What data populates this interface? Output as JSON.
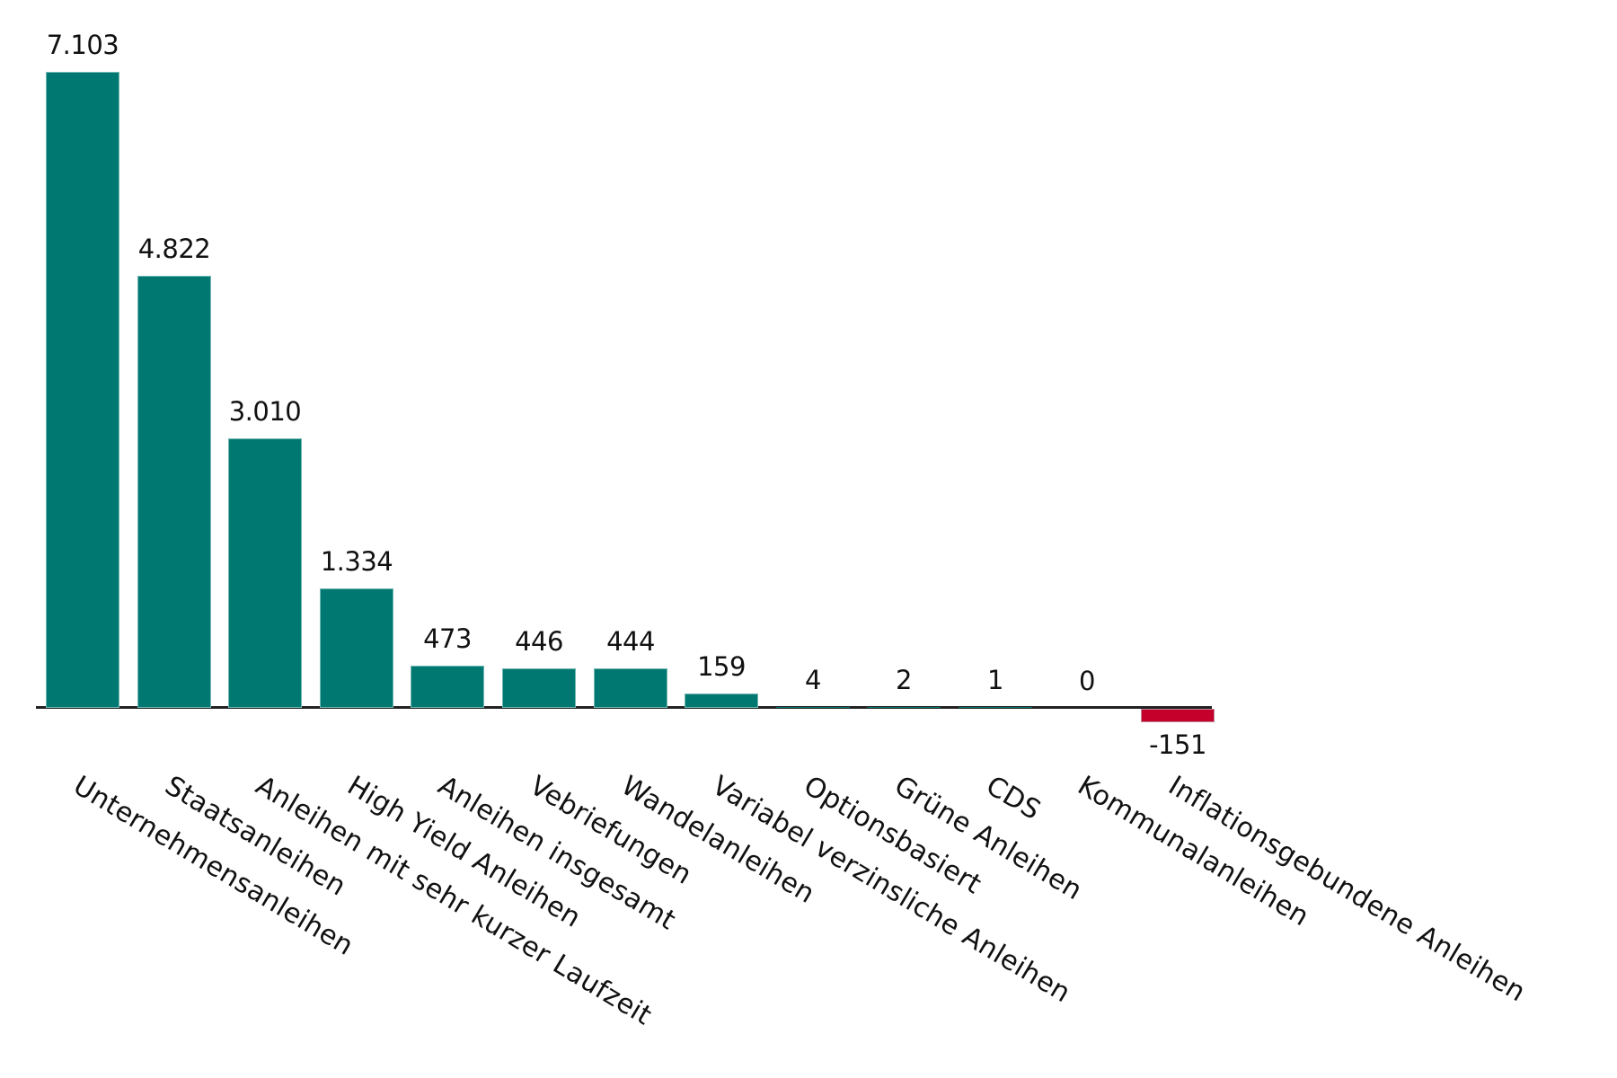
{
  "chart_data": {
    "type": "bar",
    "title": "",
    "xlabel": "",
    "ylabel": "",
    "categories": [
      "Unternehmensanleihen",
      "Staatsanleihen",
      "Anleihen mit sehr kurzer Laufzeit",
      "High Yield Anleihen",
      "Anleihen insgesamt",
      "Vebriefungen",
      "Wandelanleihen",
      "Variabel verzinsliche Anleihen",
      "Optionsbasiert",
      "Grüne Anleihen",
      "CDS",
      "Kommunalanleihen",
      "Inflationsgebundene Anleihen"
    ],
    "values": [
      7103,
      4822,
      3010,
      1334,
      473,
      446,
      444,
      159,
      4,
      2,
      1,
      0,
      -151
    ],
    "value_labels": [
      "7.103",
      "4.822",
      "3.010",
      "1.334",
      "473",
      "446",
      "444",
      "159",
      "4",
      "2",
      "1",
      "0",
      "-151"
    ],
    "colors": {
      "positive": "#007872",
      "negative": "#C4002B",
      "axis": "#222222"
    },
    "ylim": [
      -151,
      7103
    ],
    "grid": false,
    "legend": null
  }
}
